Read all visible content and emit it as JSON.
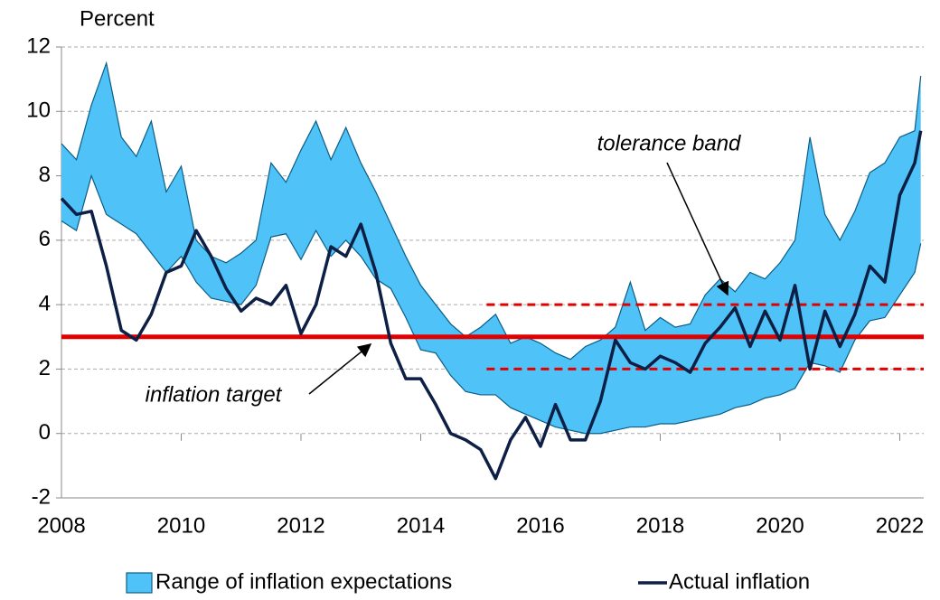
{
  "chart_data": {
    "type": "band-line",
    "y_label": "Percent",
    "xlim": [
      2008,
      2022.4
    ],
    "xticks": [
      2008,
      2010,
      2012,
      2014,
      2016,
      2018,
      2020,
      2022
    ],
    "ylim": [
      -2,
      12
    ],
    "yticks": [
      -2,
      0,
      2,
      4,
      6,
      8,
      10,
      12
    ],
    "grid": true,
    "legend": "bottom",
    "x": [
      2008,
      2008.25,
      2008.5,
      2008.75,
      2009,
      2009.25,
      2009.5,
      2009.75,
      2010,
      2010.25,
      2010.5,
      2010.75,
      2011,
      2011.25,
      2011.5,
      2011.75,
      2012,
      2012.25,
      2012.5,
      2012.75,
      2013,
      2013.25,
      2013.5,
      2013.75,
      2014,
      2014.25,
      2014.5,
      2014.75,
      2015,
      2015.25,
      2015.5,
      2015.75,
      2016,
      2016.25,
      2016.5,
      2016.75,
      2017,
      2017.25,
      2017.5,
      2017.75,
      2018,
      2018.25,
      2018.5,
      2018.75,
      2019,
      2019.25,
      2019.5,
      2019.75,
      2020,
      2020.25,
      2020.5,
      2020.75,
      2021,
      2021.25,
      2021.5,
      2021.75,
      2022,
      2022.25,
      2022.35
    ],
    "series": [
      {
        "name": "Range of inflation expectations",
        "color": "#4fc3f7",
        "edge_color": "#0b5d86",
        "upper": [
          9.0,
          8.5,
          10.2,
          11.5,
          9.2,
          8.6,
          9.7,
          7.5,
          8.3,
          6.0,
          5.5,
          5.3,
          5.6,
          6.0,
          8.4,
          7.8,
          8.8,
          9.7,
          8.5,
          9.5,
          8.4,
          7.5,
          6.5,
          5.5,
          4.6,
          4.0,
          3.4,
          3.0,
          3.3,
          3.7,
          2.8,
          3.0,
          2.8,
          2.5,
          2.3,
          2.7,
          2.9,
          3.3,
          4.7,
          3.2,
          3.6,
          3.3,
          3.4,
          4.3,
          4.8,
          4.4,
          5.0,
          4.8,
          5.3,
          6.0,
          9.2,
          6.8,
          6.0,
          6.9,
          8.1,
          8.4,
          9.2,
          9.4,
          11.1
        ],
        "lower": [
          6.6,
          6.3,
          8.0,
          6.8,
          6.5,
          6.2,
          5.6,
          5.0,
          5.5,
          4.7,
          4.2,
          4.1,
          4.0,
          4.6,
          6.1,
          6.2,
          5.4,
          6.3,
          5.5,
          6.0,
          5.5,
          4.8,
          4.5,
          3.6,
          2.6,
          2.5,
          1.8,
          1.3,
          1.2,
          1.2,
          0.8,
          0.6,
          0.4,
          0.2,
          0.1,
          0.0,
          0.0,
          0.1,
          0.2,
          0.2,
          0.3,
          0.3,
          0.4,
          0.5,
          0.6,
          0.8,
          0.9,
          1.1,
          1.2,
          1.4,
          2.2,
          2.1,
          1.9,
          2.9,
          3.5,
          3.6,
          4.3,
          5.0,
          5.9
        ]
      },
      {
        "name": "Actual inflation",
        "color": "#0d1f45",
        "values": [
          7.3,
          6.8,
          6.9,
          5.2,
          3.2,
          2.9,
          3.7,
          5.0,
          5.2,
          6.3,
          5.5,
          4.5,
          3.8,
          4.2,
          4.0,
          4.6,
          3.1,
          4.0,
          5.8,
          5.5,
          6.5,
          5.0,
          2.8,
          1.7,
          1.7,
          0.9,
          0.0,
          -0.2,
          -0.5,
          -1.4,
          -0.2,
          0.5,
          -0.4,
          0.9,
          -0.2,
          -0.2,
          1.0,
          2.9,
          2.2,
          2.0,
          2.4,
          2.2,
          1.9,
          2.8,
          3.3,
          3.9,
          2.7,
          3.8,
          2.9,
          4.6,
          2.0,
          3.8,
          2.7,
          3.7,
          5.2,
          4.7,
          7.4,
          8.4,
          9.4
        ]
      }
    ],
    "target": {
      "value": 3,
      "color": "#e00000",
      "label": "inflation target"
    },
    "tolerance": {
      "lower": 2,
      "upper": 4,
      "start": 2015.1,
      "color": "#e00000",
      "label": "tolerance band"
    }
  }
}
